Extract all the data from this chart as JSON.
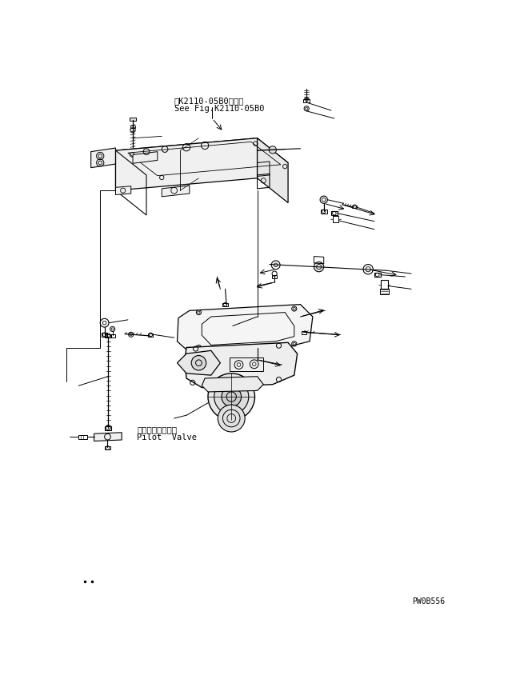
{
  "title_jp": "第K2110-05B0図参照",
  "title_en": "See Fig.K2110-05B0",
  "label_jp": "パイロットバルブ",
  "label_en": "Pilot  Valve",
  "code": "PW0B556",
  "bg_color": "#ffffff",
  "line_color": "#000000",
  "fig_width": 6.5,
  "fig_height": 8.7
}
